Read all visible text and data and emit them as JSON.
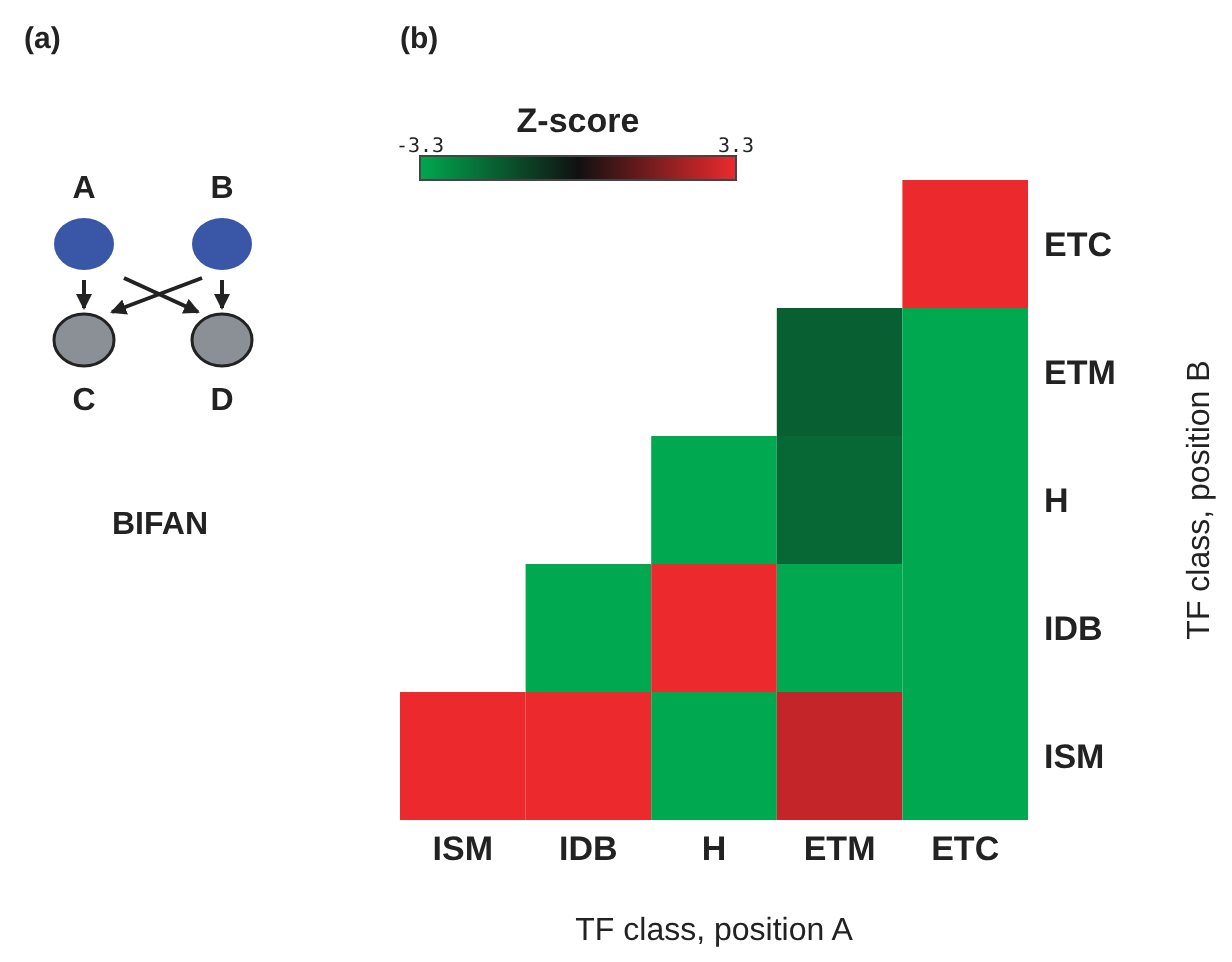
{
  "chart_data": [
    {
      "type": "other",
      "title": "(a)",
      "annotations": [
        "A",
        "B",
        "C",
        "D",
        "BIFAN"
      ]
    },
    {
      "type": "heatmap",
      "title": "(b)",
      "xlabel": "TF class, position A",
      "ylabel": "TF class, position B",
      "clabel": "Z-score",
      "categories": [
        "ISM",
        "IDB",
        "H",
        "ETM",
        "ETC"
      ],
      "y_categories": [
        "ETC",
        "ETM",
        "H",
        "IDB",
        "ISM"
      ],
      "cells": [
        [
          null,
          null,
          null,
          null,
          3.3
        ],
        [
          null,
          null,
          null,
          -1.7,
          -3.3
        ],
        [
          null,
          null,
          -3.3,
          -1.9,
          -3.3
        ],
        [
          null,
          -3.3,
          3.3,
          -3.3,
          -3.3
        ],
        [
          3.3,
          3.3,
          -3.3,
          2.7,
          -3.3
        ]
      ],
      "clim": [
        -3.3,
        3.3
      ],
      "cticks": [
        -3.3,
        3.3
      ]
    }
  ]
}
